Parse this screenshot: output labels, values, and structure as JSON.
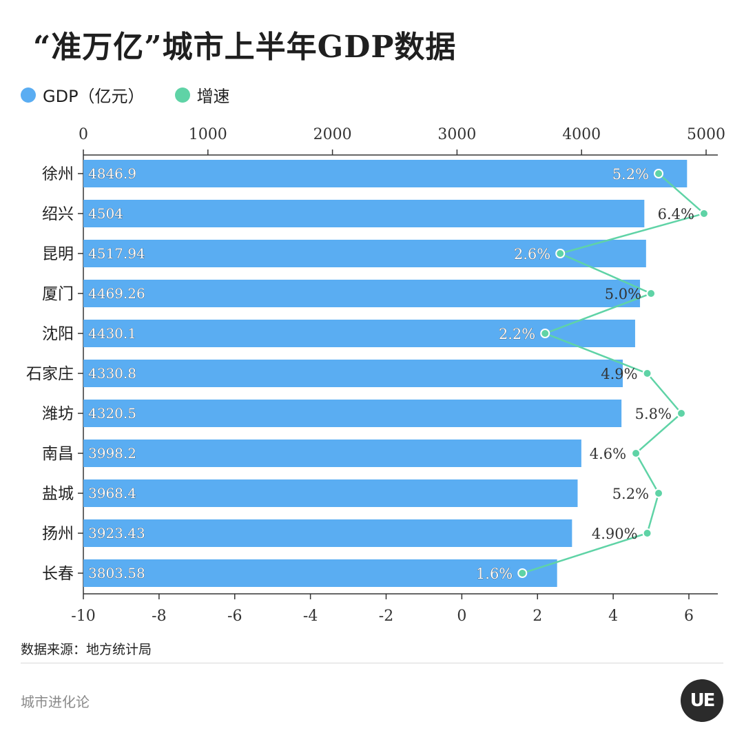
{
  "title": "“准万亿”城市上半年GDP数据",
  "legend": [
    {
      "label": "GDP（亿元）",
      "color": "#5aadf2"
    },
    {
      "label": "增速",
      "color": "#5fd3a6"
    }
  ],
  "source": "数据来源：地方统计局",
  "brand": "城市进化论",
  "logo_text": "UE",
  "chart_data": {
    "type": "bar",
    "categories": [
      "徐州",
      "绍兴",
      "昆明",
      "厦门",
      "沈阳",
      "石家庄",
      "潍坊",
      "南昌",
      "盐城",
      "扬州",
      "长春"
    ],
    "series": [
      {
        "name": "GDP（亿元）",
        "type": "bar",
        "axis": "top",
        "values": [
          4846.9,
          4504,
          4517.94,
          4469.26,
          4430.1,
          4330.8,
          4320.5,
          3998.2,
          3968.4,
          3923.43,
          3803.58
        ],
        "labels": [
          "4846.9",
          "4504",
          "4517.94",
          "4469.26",
          "4430.1",
          "4330.8",
          "4320.5",
          "3998.2",
          "3968.4",
          "3923.43",
          "3803.58"
        ],
        "color": "#5aadf2"
      },
      {
        "name": "增速",
        "type": "line",
        "axis": "bottom",
        "values": [
          5.2,
          6.4,
          2.6,
          5.0,
          2.2,
          4.9,
          5.8,
          4.6,
          5.2,
          4.9,
          1.6
        ],
        "labels": [
          "5.2%",
          "6.4%",
          "2.6%",
          "5.0%",
          "2.2%",
          "4.9%",
          "5.8%",
          "4.6%",
          "5.2%",
          "4.90%",
          "1.6%"
        ],
        "color": "#5fd3a6"
      }
    ],
    "top_axis": {
      "ticks": [
        "0",
        "1000",
        "2000",
        "3000",
        "4000",
        "5000"
      ],
      "range": [
        0,
        5000
      ]
    },
    "bottom_axis": {
      "ticks": [
        "-10",
        "-8",
        "-6",
        "-4",
        "-2",
        "0",
        "2",
        "4",
        "6"
      ],
      "range": [
        -10,
        6.7
      ]
    },
    "grid": false,
    "legend_position": "top-left"
  }
}
